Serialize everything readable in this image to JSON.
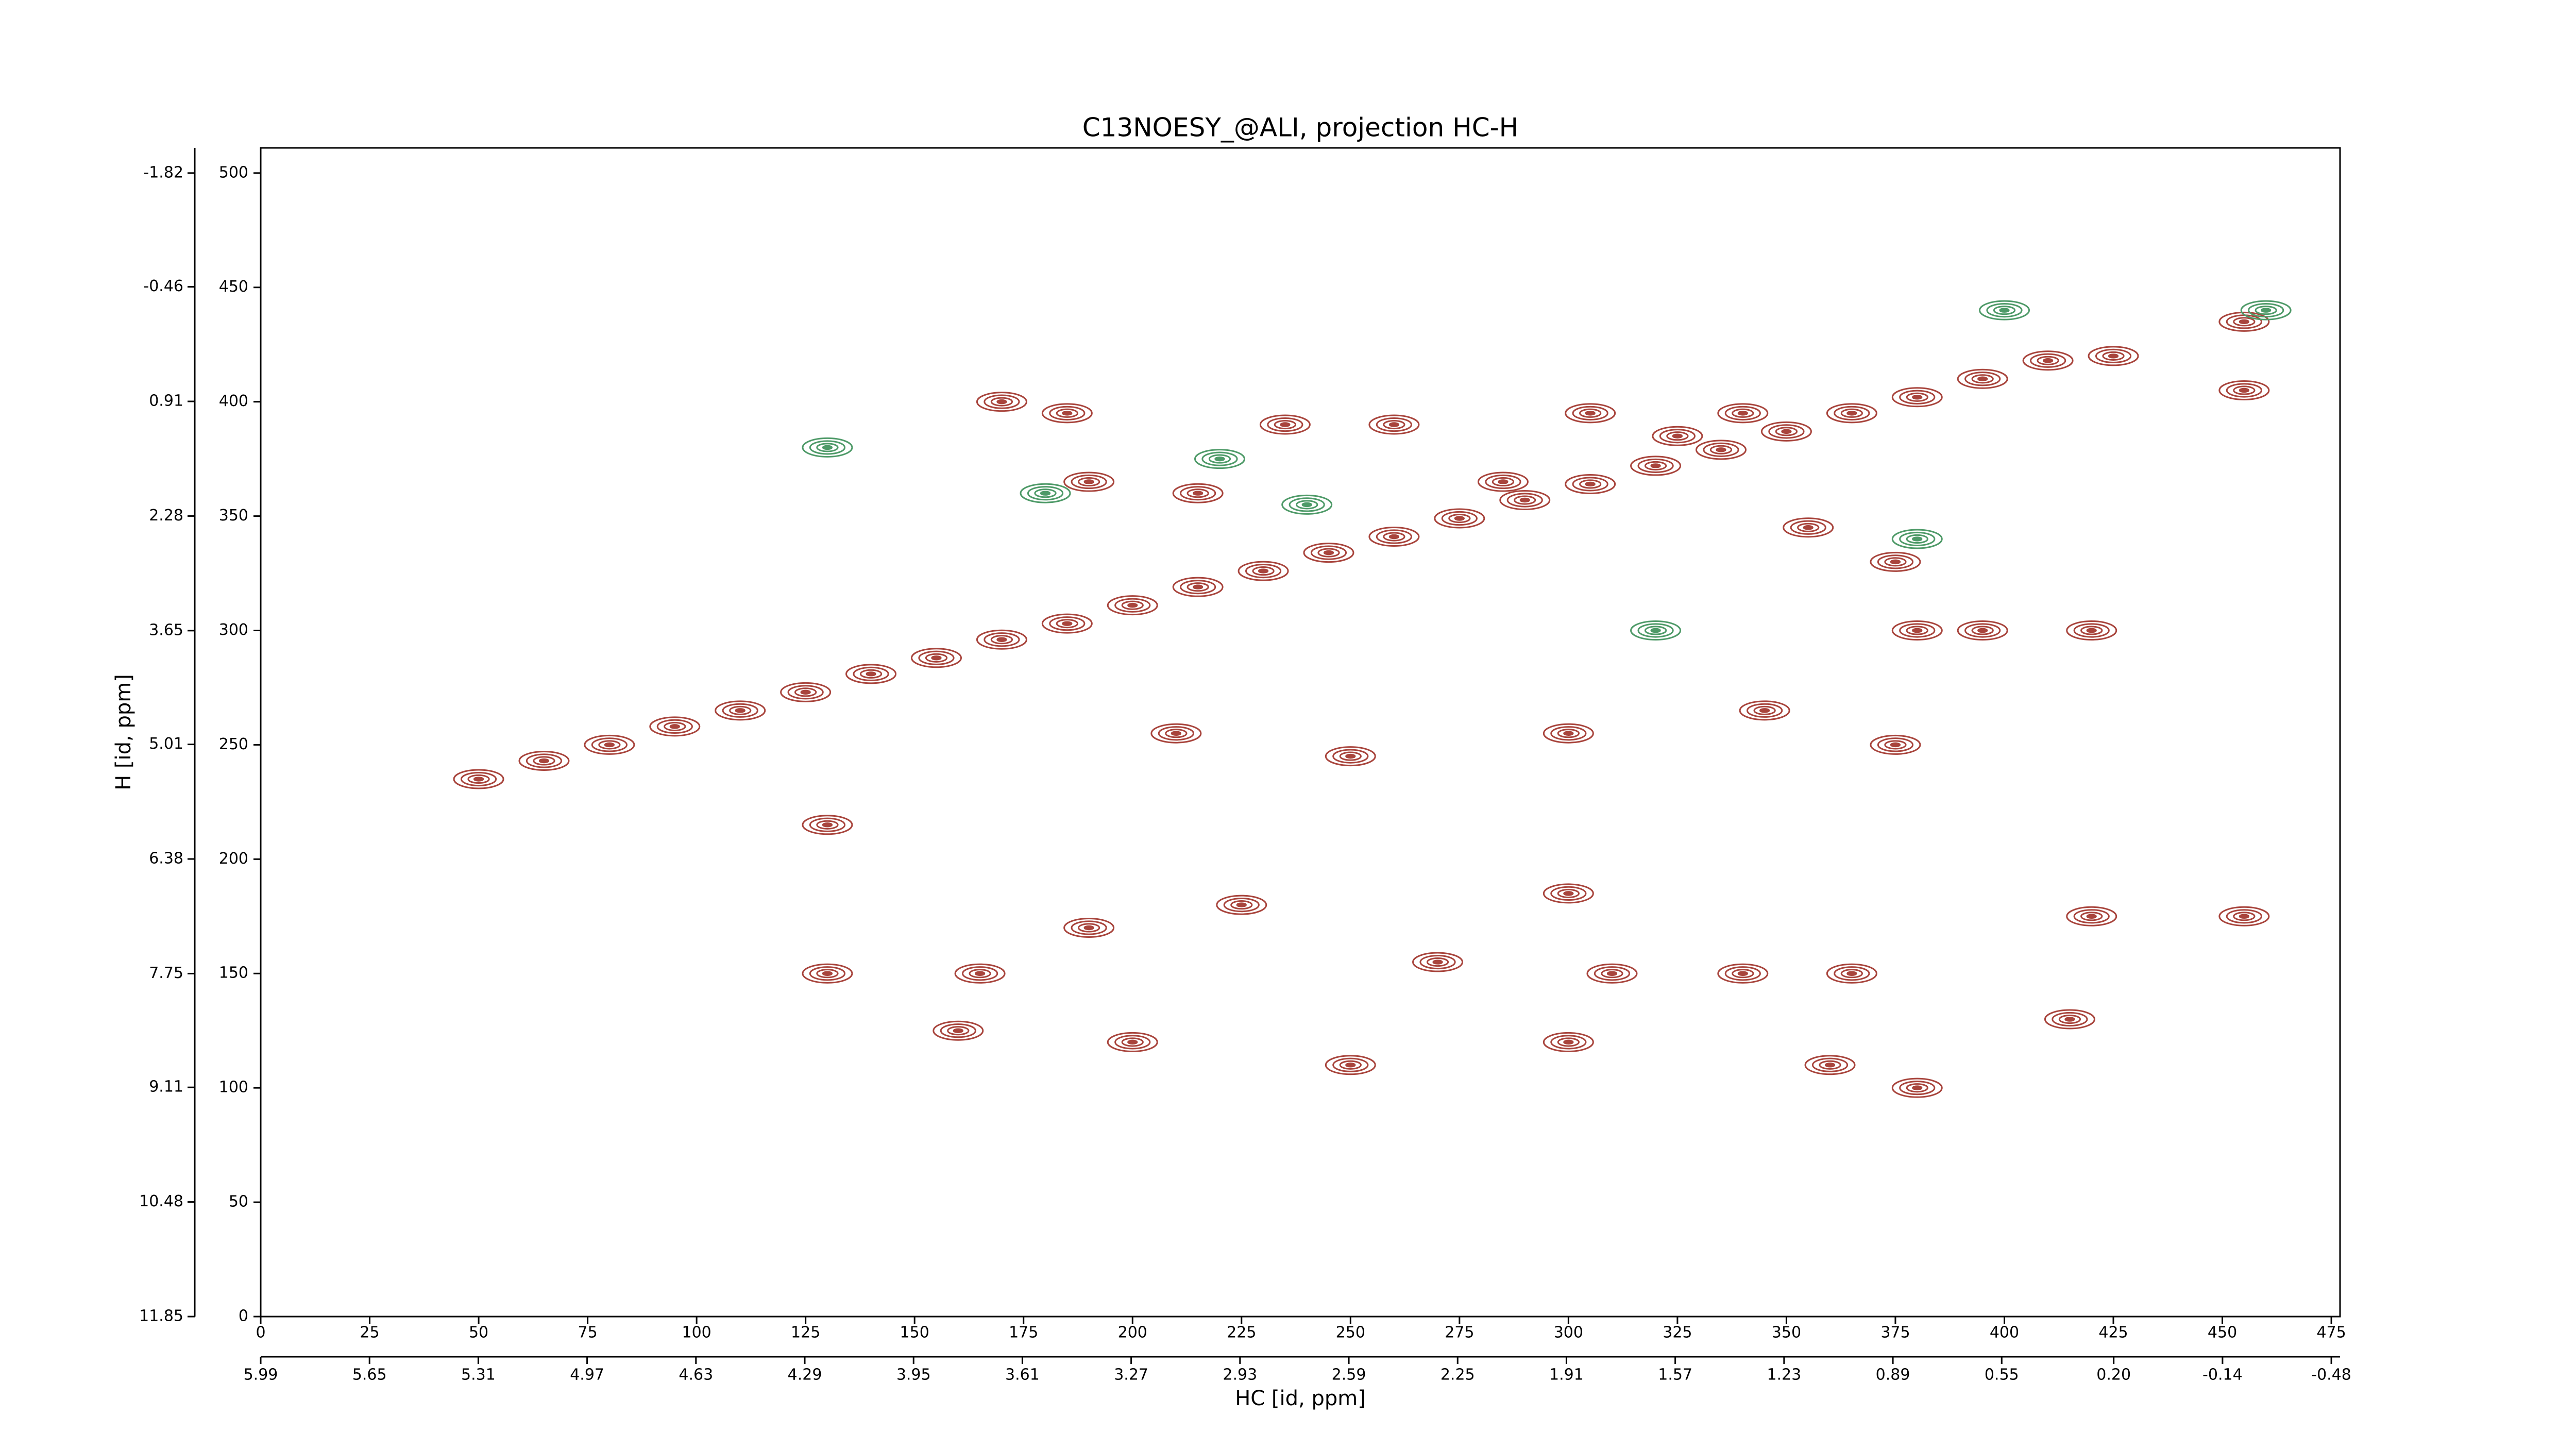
{
  "chart_data": {
    "type": "contour",
    "title": "C13NOESY_@ALI, projection HC-H",
    "xlabel": "HC [id, ppm]",
    "ylabel": "H [id, ppm]",
    "xlim": [
      0,
      477
    ],
    "ylim": [
      0,
      511
    ],
    "xticks": [
      0,
      25,
      50,
      75,
      100,
      125,
      150,
      175,
      200,
      225,
      250,
      275,
      300,
      325,
      350,
      375,
      400,
      425,
      450,
      475
    ],
    "yticks": [
      0,
      50,
      100,
      150,
      200,
      250,
      300,
      350,
      400,
      450,
      500
    ],
    "x2lim": [
      5.99,
      -0.48
    ],
    "x2ticks": [
      5.99,
      5.65,
      5.31,
      4.97,
      4.63,
      4.29,
      3.95,
      3.61,
      3.27,
      2.93,
      2.59,
      2.25,
      1.91,
      1.57,
      1.23,
      0.89,
      0.55,
      {
        "value": 0.2,
        "label": "0.20"
      },
      -0.14,
      -0.48
    ],
    "y2lim": [
      11.85,
      -1.82
    ],
    "y2ticks": [
      11.85,
      10.48,
      9.11,
      7.75,
      6.38,
      5.01,
      3.65,
      2.28,
      0.91,
      -0.46,
      -1.82
    ],
    "series": [
      {
        "color": "#a8443c",
        "x": [
          50,
          65,
          80,
          95,
          110,
          125,
          140,
          155,
          170,
          185,
          200,
          215,
          230,
          245,
          260,
          275,
          290,
          305,
          320,
          335,
          350,
          365,
          380,
          395,
          410,
          425,
          170,
          185,
          190,
          215,
          235,
          260,
          285,
          305,
          325,
          340,
          355,
          375,
          380,
          395,
          420,
          345,
          300,
          250,
          210,
          375,
          300,
          225,
          165,
          190,
          270,
          310,
          340,
          365,
          160,
          200,
          250,
          300,
          360,
          380,
          415,
          420,
          455,
          455,
          455,
          130,
          130
        ],
        "y": [
          235,
          243,
          250,
          258,
          265,
          273,
          281,
          288,
          296,
          303,
          311,
          319,
          326,
          334,
          341,
          349,
          357,
          364,
          372,
          379,
          387,
          395,
          402,
          410,
          418,
          420,
          400,
          395,
          365,
          360,
          390,
          390,
          365,
          395,
          385,
          395,
          345,
          330,
          300,
          300,
          300,
          265,
          255,
          245,
          255,
          250,
          185,
          180,
          150,
          170,
          155,
          150,
          150,
          150,
          125,
          120,
          110,
          120,
          110,
          100,
          130,
          175,
          175,
          405,
          435,
          215,
          150
        ]
      },
      {
        "color": "#4e9a68",
        "x": [
          400,
          460,
          130,
          180,
          240,
          320,
          220,
          380
        ],
        "y": [
          440,
          440,
          380,
          360,
          355,
          300,
          375,
          340
        ]
      }
    ]
  }
}
